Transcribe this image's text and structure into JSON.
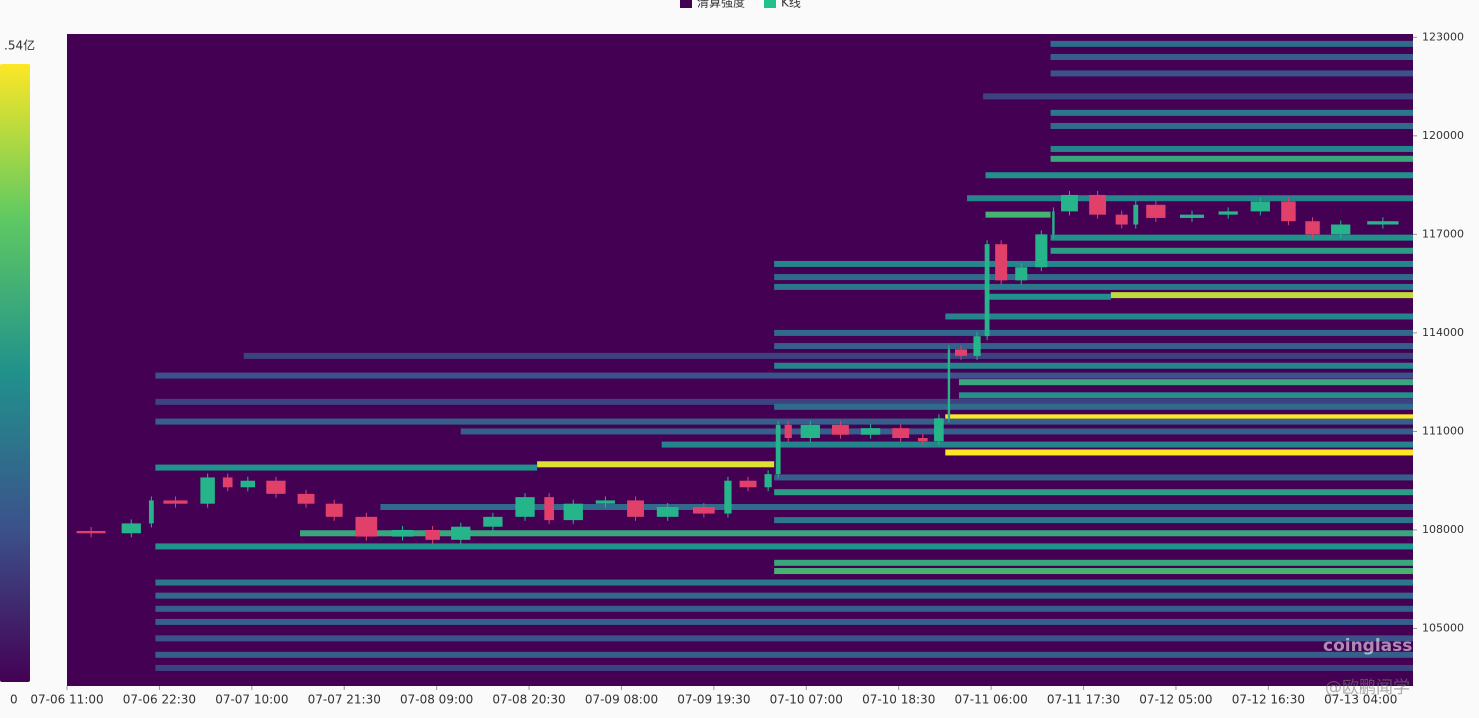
{
  "chart_data": {
    "type": "heatmap",
    "legend": [
      {
        "name": "清算强度",
        "color": "#440154"
      },
      {
        "name": "K线",
        "color": "#22c08a"
      }
    ],
    "colorbar": {
      "max_label": ".54亿",
      "min_label": "0"
    },
    "watermark": "coinglass",
    "credit": "@欧鹏闻学",
    "xlim": [
      11,
      178.5
    ],
    "xticks": [
      {
        "value": 11,
        "label": "07-06 11:00"
      },
      {
        "value": 22.5,
        "label": "07-06 22:30"
      },
      {
        "value": 34,
        "label": "07-07 10:00"
      },
      {
        "value": 45.5,
        "label": "07-07 21:30"
      },
      {
        "value": 57,
        "label": "07-08 09:00"
      },
      {
        "value": 68.5,
        "label": "07-08 20:30"
      },
      {
        "value": 80,
        "label": "07-09 08:00"
      },
      {
        "value": 91.5,
        "label": "07-09 19:30"
      },
      {
        "value": 103,
        "label": "07-10 07:00"
      },
      {
        "value": 114.5,
        "label": "07-10 18:30"
      },
      {
        "value": 126,
        "label": "07-11 06:00"
      },
      {
        "value": 137.5,
        "label": "07-11 17:30"
      },
      {
        "value": 149,
        "label": "07-12 05:00"
      },
      {
        "value": 160.5,
        "label": "07-12 16:30"
      },
      {
        "value": 172,
        "label": "07-13 04:00"
      }
    ],
    "ylim": [
      103250,
      123100
    ],
    "yticks": [
      105000,
      108000,
      111000,
      114000,
      117000,
      120000,
      123000
    ],
    "up_color": "#26b58a",
    "down_color": "#e0406a",
    "bands": [
      {
        "price": 122800,
        "start": 133.4,
        "intensity": 0.35
      },
      {
        "price": 122400,
        "start": 133.4,
        "intensity": 0.3
      },
      {
        "price": 121900,
        "start": 133.4,
        "intensity": 0.25
      },
      {
        "price": 121200,
        "start": 125,
        "intensity": 0.2
      },
      {
        "price": 120700,
        "start": 133.4,
        "intensity": 0.4
      },
      {
        "price": 120300,
        "start": 133.4,
        "intensity": 0.35
      },
      {
        "price": 119600,
        "start": 133.4,
        "intensity": 0.45
      },
      {
        "price": 119300,
        "start": 133.4,
        "intensity": 0.6
      },
      {
        "price": 118800,
        "start": 125.3,
        "intensity": 0.5
      },
      {
        "price": 118100,
        "start": 123,
        "intensity": 0.45
      },
      {
        "price": 117600,
        "start": 125.3,
        "end": 133.4,
        "intensity": 0.65
      },
      {
        "price": 116900,
        "start": 133.4,
        "intensity": 0.5
      },
      {
        "price": 116500,
        "start": 133.4,
        "intensity": 0.55
      },
      {
        "price": 116100,
        "start": 99,
        "intensity": 0.45
      },
      {
        "price": 115700,
        "start": 99,
        "intensity": 0.35
      },
      {
        "price": 115400,
        "start": 99,
        "intensity": 0.4
      },
      {
        "price": 115150,
        "start": 140.9,
        "intensity": 0.9
      },
      {
        "price": 115100,
        "start": 125.3,
        "end": 140.9,
        "intensity": 0.5
      },
      {
        "price": 114500,
        "start": 120.3,
        "intensity": 0.45
      },
      {
        "price": 114000,
        "start": 99,
        "intensity": 0.35
      },
      {
        "price": 113600,
        "start": 99,
        "intensity": 0.3
      },
      {
        "price": 113300,
        "start": 33,
        "intensity": 0.2
      },
      {
        "price": 113000,
        "start": 99,
        "intensity": 0.45
      },
      {
        "price": 112700,
        "start": 22,
        "intensity": 0.25
      },
      {
        "price": 112500,
        "start": 122,
        "intensity": 0.6
      },
      {
        "price": 112100,
        "start": 122,
        "intensity": 0.5
      },
      {
        "price": 111900,
        "start": 22,
        "intensity": 0.2
      },
      {
        "price": 111750,
        "start": 99,
        "intensity": 0.35
      },
      {
        "price": 111430,
        "start": 120.3,
        "intensity": 1
      },
      {
        "price": 111300,
        "start": 22,
        "intensity": 0.3
      },
      {
        "price": 111000,
        "start": 60,
        "intensity": 0.3
      },
      {
        "price": 110600,
        "start": 85,
        "intensity": 0.45
      },
      {
        "price": 110360,
        "start": 120.3,
        "intensity": 1
      },
      {
        "price": 110000,
        "start": 69.5,
        "end": 99,
        "intensity": 0.95
      },
      {
        "price": 109900,
        "start": 22,
        "end": 69.5,
        "intensity": 0.5
      },
      {
        "price": 109600,
        "start": 99,
        "intensity": 0.3
      },
      {
        "price": 109150,
        "start": 99,
        "intensity": 0.55
      },
      {
        "price": 108700,
        "start": 50,
        "intensity": 0.35
      },
      {
        "price": 108300,
        "start": 99,
        "intensity": 0.4
      },
      {
        "price": 107900,
        "start": 40,
        "intensity": 0.6
      },
      {
        "price": 107500,
        "start": 22,
        "intensity": 0.5
      },
      {
        "price": 107000,
        "start": 99,
        "intensity": 0.6
      },
      {
        "price": 106750,
        "start": 99,
        "intensity": 0.65
      },
      {
        "price": 106400,
        "start": 22,
        "intensity": 0.4
      },
      {
        "price": 106000,
        "start": 22,
        "intensity": 0.35
      },
      {
        "price": 105600,
        "start": 22,
        "intensity": 0.3
      },
      {
        "price": 105200,
        "start": 22,
        "intensity": 0.3
      },
      {
        "price": 104700,
        "start": 22,
        "intensity": 0.25
      },
      {
        "price": 104200,
        "start": 22,
        "intensity": 0.3
      },
      {
        "price": 103800,
        "start": 22,
        "intensity": 0.2
      }
    ],
    "x": [
      11,
      17,
      21,
      22,
      27,
      30,
      32,
      35,
      39,
      42.5,
      46,
      50.5,
      55,
      58,
      62,
      66,
      70,
      72,
      76,
      80,
      83.5,
      88,
      92.5,
      94,
      97.5,
      99,
      100,
      101.5,
      105.5,
      109,
      113,
      116.5,
      118.5,
      120.5,
      121,
      123.5,
      125,
      126,
      128.5,
      131,
      133.5,
      134,
      137.5,
      141,
      143.5,
      144.5,
      148.5,
      153.5,
      157.5,
      161.5,
      164.5,
      167.5,
      171.5,
      178
    ],
    "values": [
      107970,
      107900,
      108200,
      108900,
      108800,
      109600,
      109300,
      109500,
      109100,
      108800,
      108400,
      107800,
      108000,
      107700,
      108100,
      108400,
      109000,
      108300,
      108800,
      108900,
      108400,
      108700,
      108500,
      109500,
      109300,
      109700,
      111200,
      110800,
      111200,
      110900,
      111100,
      110800,
      110700,
      111400,
      113500,
      113300,
      113900,
      116700,
      115600,
      116000,
      117000,
      117700,
      118200,
      117600,
      117300,
      117900,
      117500,
      117600,
      117700,
      118000,
      117400,
      117000,
      117300,
      117400
    ]
  }
}
